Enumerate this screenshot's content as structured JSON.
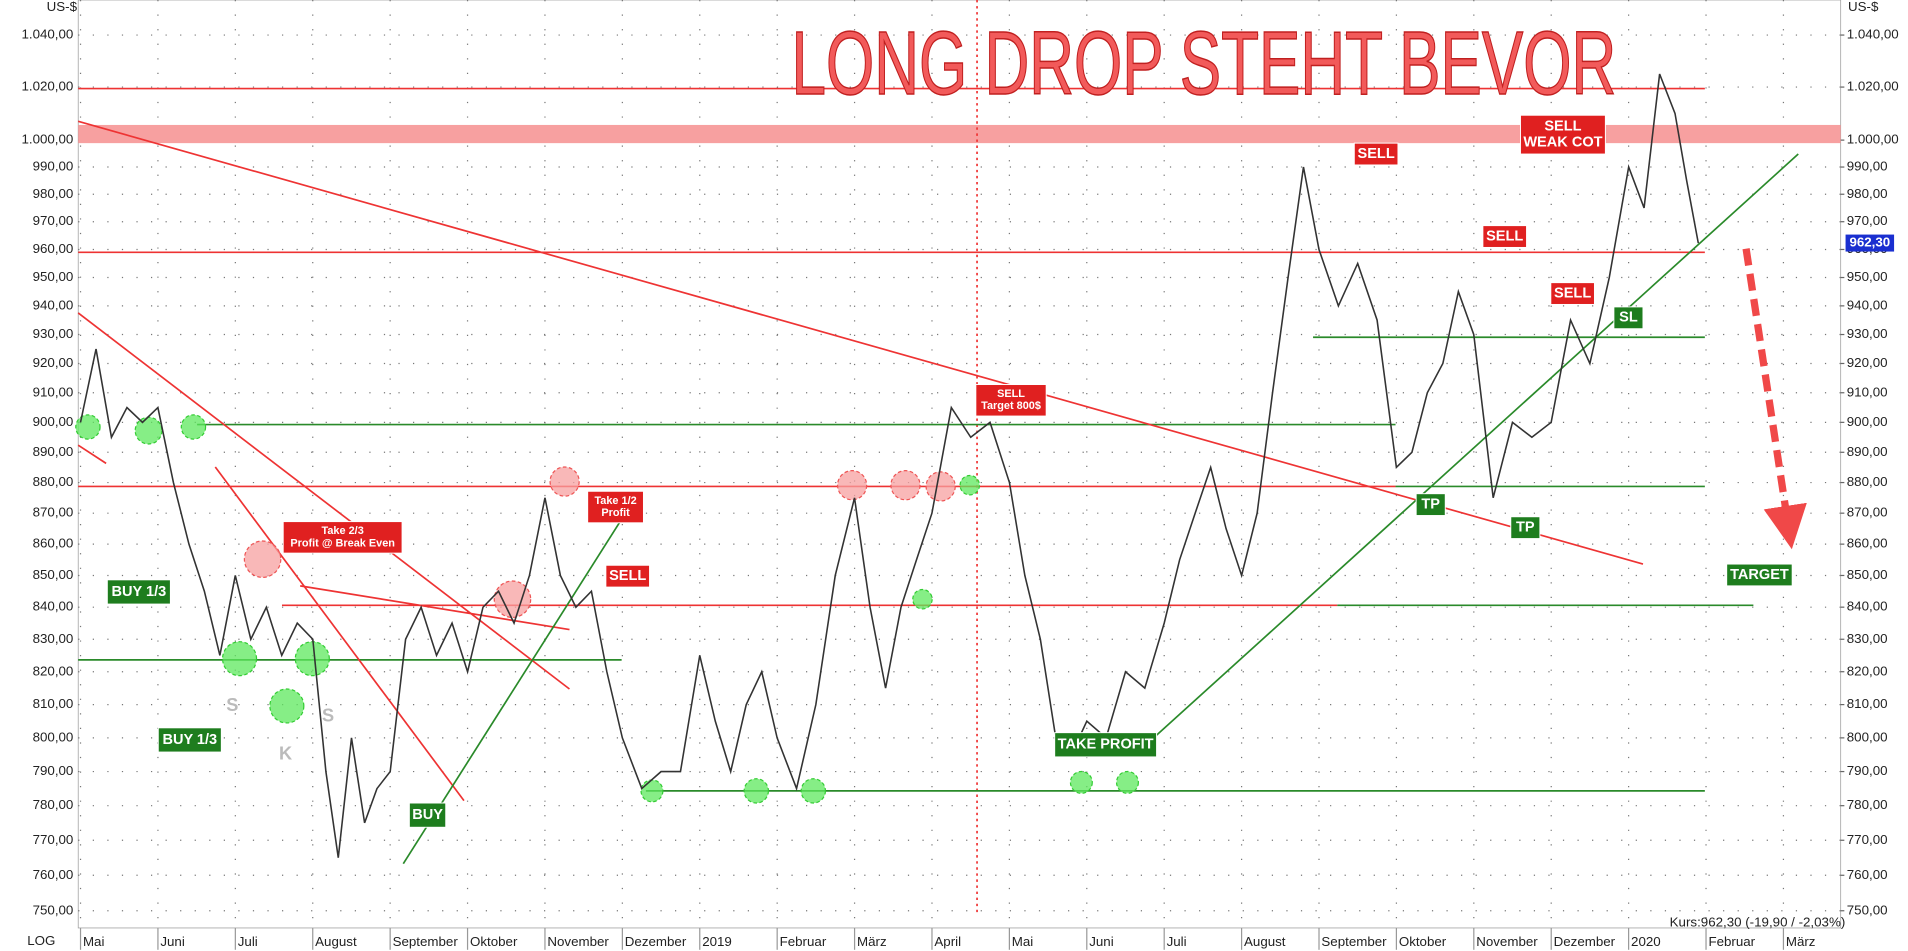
{
  "chart_data": {
    "type": "line",
    "title": "LONG DROP STEHT BEVOR",
    "y_unit": "US-$",
    "scale_label": "LOG",
    "log_scale": true,
    "grid": true,
    "kurs_label": "Kurs:962,30 (-19,90 / -2,03%)",
    "price_tag": {
      "value": 962.3,
      "label": "962,30"
    },
    "xlim": [
      -0.03,
      22.74
    ],
    "xticks": [
      {
        "value": 0,
        "label": "Mai"
      },
      {
        "value": 1,
        "label": "Juni"
      },
      {
        "value": 2,
        "label": "Juli"
      },
      {
        "value": 3,
        "label": "August"
      },
      {
        "value": 4,
        "label": "September"
      },
      {
        "value": 5,
        "label": "Oktober"
      },
      {
        "value": 6,
        "label": "November"
      },
      {
        "value": 7,
        "label": "Dezember"
      },
      {
        "value": 8,
        "label": "2019"
      },
      {
        "value": 9,
        "label": "Februar"
      },
      {
        "value": 10,
        "label": "März"
      },
      {
        "value": 11,
        "label": "April"
      },
      {
        "value": 12,
        "label": "Mai"
      },
      {
        "value": 13,
        "label": "Juni"
      },
      {
        "value": 14,
        "label": "Juli"
      },
      {
        "value": 15,
        "label": "August"
      },
      {
        "value": 16,
        "label": "September"
      },
      {
        "value": 17,
        "label": "Oktober"
      },
      {
        "value": 18,
        "label": "November"
      },
      {
        "value": 19,
        "label": "Dezember"
      },
      {
        "value": 20,
        "label": "2020"
      },
      {
        "value": 21,
        "label": "Februar"
      },
      {
        "value": 22,
        "label": "März"
      }
    ],
    "ylim": [
      745.2,
      1053.7
    ],
    "yticks": [
      {
        "value": 750,
        "label": "750,00"
      },
      {
        "value": 760,
        "label": "760,00"
      },
      {
        "value": 770,
        "label": "770,00"
      },
      {
        "value": 780,
        "label": "780,00"
      },
      {
        "value": 790,
        "label": "790,00"
      },
      {
        "value": 800,
        "label": "800,00"
      },
      {
        "value": 810,
        "label": "810,00"
      },
      {
        "value": 820,
        "label": "820,00"
      },
      {
        "value": 830,
        "label": "830,00"
      },
      {
        "value": 840,
        "label": "840,00"
      },
      {
        "value": 850,
        "label": "850,00"
      },
      {
        "value": 860,
        "label": "860,00"
      },
      {
        "value": 870,
        "label": "870,00"
      },
      {
        "value": 880,
        "label": "880,00"
      },
      {
        "value": 890,
        "label": "890,00"
      },
      {
        "value": 900,
        "label": "900,00"
      },
      {
        "value": 910,
        "label": "910,00"
      },
      {
        "value": 920,
        "label": "920,00"
      },
      {
        "value": 930,
        "label": "930,00"
      },
      {
        "value": 940,
        "label": "940,00"
      },
      {
        "value": 950,
        "label": "950,00"
      },
      {
        "value": 960,
        "label": "960,00"
      },
      {
        "value": 970,
        "label": "970,00"
      },
      {
        "value": 980,
        "label": "980,00"
      },
      {
        "value": 990,
        "label": "990,00"
      },
      {
        "value": 1000,
        "label": "1.000,00"
      },
      {
        "value": 1020,
        "label": "1.020,00"
      },
      {
        "value": 1040,
        "label": "1.040,00"
      }
    ],
    "x": [
      0,
      0.2,
      0.4,
      0.6,
      0.8,
      1,
      1.2,
      1.4,
      1.6,
      1.8,
      2,
      2.2,
      2.4,
      2.6,
      2.8,
      3,
      3.17,
      3.33,
      3.5,
      3.67,
      3.83,
      4,
      4.2,
      4.4,
      4.6,
      4.8,
      5,
      5.2,
      5.4,
      5.6,
      5.8,
      6,
      6.2,
      6.4,
      6.6,
      6.8,
      7,
      7.25,
      7.5,
      7.75,
      8,
      8.2,
      8.4,
      8.6,
      8.8,
      9,
      9.25,
      9.5,
      9.75,
      10,
      10.2,
      10.4,
      10.6,
      10.8,
      11,
      11.25,
      11.5,
      11.75,
      12,
      12.2,
      12.4,
      12.6,
      12.8,
      13,
      13.25,
      13.5,
      13.75,
      14,
      14.2,
      14.4,
      14.6,
      14.8,
      15,
      15.2,
      15.4,
      15.6,
      15.8,
      16,
      16.25,
      16.5,
      16.75,
      17,
      17.2,
      17.4,
      17.6,
      17.8,
      18,
      18.25,
      18.5,
      18.75,
      19,
      19.25,
      19.5,
      19.75,
      20,
      20.2,
      20.4,
      20.6,
      20.75,
      20.9
    ],
    "series": [
      {
        "color": "#333333",
        "values": [
          900,
          925,
          895,
          905,
          900,
          905,
          880,
          860,
          845,
          825,
          850,
          830,
          840,
          825,
          835,
          830,
          790,
          765,
          800,
          775,
          785,
          790,
          830,
          840,
          825,
          835,
          820,
          840,
          845,
          835,
          850,
          875,
          850,
          840,
          845,
          820,
          800,
          785,
          790,
          790,
          825,
          805,
          790,
          810,
          820,
          800,
          785,
          810,
          850,
          875,
          840,
          815,
          840,
          855,
          870,
          905,
          895,
          900,
          880,
          850,
          830,
          800,
          795,
          805,
          800,
          820,
          815,
          835,
          855,
          870,
          885,
          865,
          850,
          870,
          910,
          950,
          990,
          960,
          940,
          955,
          935,
          885,
          890,
          910,
          920,
          945,
          930,
          875,
          900,
          895,
          900,
          935,
          920,
          950,
          990,
          975,
          1025,
          1010,
          985,
          962.3
        ]
      }
    ],
    "annotations": [
      {
        "lines": [
          "BUY 1/3"
        ],
        "color": "#1e7d1e"
      },
      {
        "lines": [
          "BUY 1/3"
        ],
        "color": "#1e7d1e"
      },
      {
        "lines": [
          "BUY"
        ],
        "color": "#1e7d1e"
      },
      {
        "lines": [
          "Take 2/3",
          "Profit @ Break Even"
        ],
        "color": "#e02020"
      },
      {
        "lines": [
          "Take 1/2",
          "Profit"
        ],
        "color": "#e02020"
      },
      {
        "lines": [
          "SELL"
        ],
        "color": "#e02020"
      },
      {
        "lines": [
          "SELL",
          "Target 800$"
        ],
        "color": "#e02020"
      },
      {
        "lines": [
          "TAKE PROFIT"
        ],
        "color": "#1e7d1e"
      },
      {
        "lines": [
          "TP"
        ],
        "color": "#1e7d1e"
      },
      {
        "lines": [
          "TP"
        ],
        "color": "#1e7d1e"
      },
      {
        "lines": [
          "SL"
        ],
        "color": "#1e7d1e"
      },
      {
        "lines": [
          "SELL"
        ],
        "color": "#e02020"
      },
      {
        "lines": [
          "SELL"
        ],
        "color": "#e02020"
      },
      {
        "lines": [
          "SELL"
        ],
        "color": "#e02020"
      },
      {
        "lines": [
          "SELL",
          "WEAK COT"
        ],
        "color": "#e02020"
      },
      {
        "lines": [
          "TARGET"
        ],
        "color": "#1e7d1e"
      },
      {
        "lines": [
          "S"
        ],
        "color": "#bbbbbb"
      },
      {
        "lines": [
          "K"
        ],
        "color": "#bbbbbb"
      },
      {
        "lines": [
          "S"
        ],
        "color": "#bbbbbb"
      }
    ]
  }
}
